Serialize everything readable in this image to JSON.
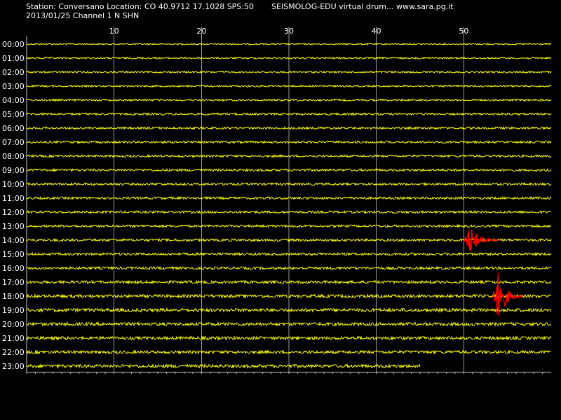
{
  "header": {
    "station_line": "Station: Conversano Location: CO 40.9712 17.1028 SPS:50",
    "date_channel_line": "2013/01/25  Channel 1 N SHN",
    "app_line": "SEISMOLOG-EDU virtual drum... www.sara.pg.it"
  },
  "colors": {
    "background": "#000000",
    "trace": "#ffff00",
    "event_trace": "#ff0000",
    "grid": "#ffffff",
    "text": "#ffffff"
  },
  "chart_data": {
    "type": "line",
    "title": "",
    "xlabel": "",
    "ylabel": "",
    "x_unit": "minutes",
    "xlim": [
      0,
      60
    ],
    "x_ticks": [
      10,
      20,
      30,
      40,
      50
    ],
    "x_tick_labels": [
      "10",
      "20",
      "30",
      "40",
      "50"
    ],
    "grid": true,
    "rows": [
      {
        "label": "00:00",
        "end_minute": 60
      },
      {
        "label": "01:00",
        "end_minute": 60
      },
      {
        "label": "02:00",
        "end_minute": 60
      },
      {
        "label": "03:00",
        "end_minute": 60
      },
      {
        "label": "04:00",
        "end_minute": 60
      },
      {
        "label": "05:00",
        "end_minute": 60
      },
      {
        "label": "06:00",
        "end_minute": 60
      },
      {
        "label": "07:00",
        "end_minute": 60
      },
      {
        "label": "08:00",
        "end_minute": 60
      },
      {
        "label": "09:00",
        "end_minute": 60
      },
      {
        "label": "10:00",
        "end_minute": 60
      },
      {
        "label": "11:00",
        "end_minute": 60
      },
      {
        "label": "12:00",
        "end_minute": 60
      },
      {
        "label": "13:00",
        "end_minute": 60
      },
      {
        "label": "14:00",
        "end_minute": 60
      },
      {
        "label": "15:00",
        "end_minute": 60
      },
      {
        "label": "16:00",
        "end_minute": 60
      },
      {
        "label": "17:00",
        "end_minute": 60
      },
      {
        "label": "18:00",
        "end_minute": 60
      },
      {
        "label": "19:00",
        "end_minute": 60
      },
      {
        "label": "20:00",
        "end_minute": 60
      },
      {
        "label": "21:00",
        "end_minute": 60
      },
      {
        "label": "22:00",
        "end_minute": 60
      },
      {
        "label": "23:00",
        "end_minute": 45
      }
    ],
    "noise_amplitude": [
      0.18,
      0.22,
      0.22,
      0.22,
      0.24,
      0.26,
      0.28,
      0.28,
      0.28,
      0.3,
      0.3,
      0.3,
      0.3,
      0.3,
      0.32,
      0.32,
      0.34,
      0.36,
      0.4,
      0.44,
      0.42,
      0.4,
      0.38,
      0.42
    ],
    "events": [
      {
        "row": "14:00",
        "start_minute": 50.0,
        "end_minute": 54.0,
        "peak_amplitude": 1.25
      },
      {
        "row": "18:00",
        "start_minute": 53.3,
        "end_minute": 56.8,
        "peak_amplitude": 2.1
      }
    ]
  }
}
